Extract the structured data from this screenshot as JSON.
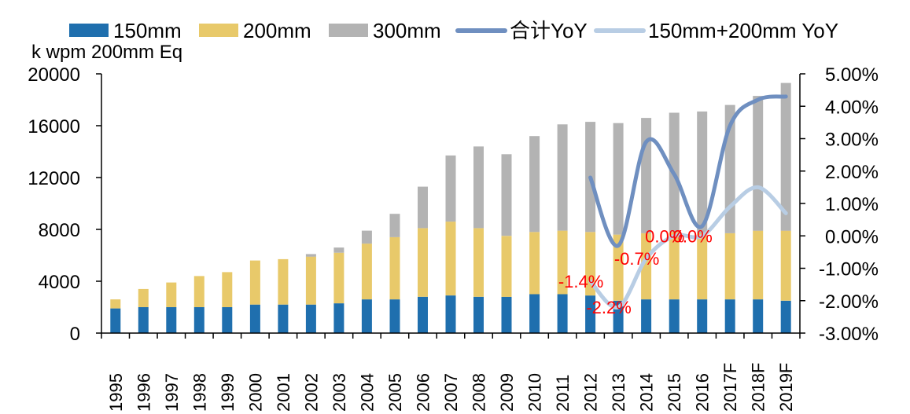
{
  "chart_data": {
    "type": "bar",
    "stacked": true,
    "y_unit_label": "k wpm 200mm Eq",
    "categories": [
      "1995",
      "1996",
      "1997",
      "1998",
      "1999",
      "2000",
      "2001",
      "2002",
      "2003",
      "2004",
      "2005",
      "2006",
      "2007",
      "2008",
      "2009",
      "2010",
      "2011",
      "2012",
      "2013",
      "2014",
      "2015",
      "2016",
      "2017F",
      "2018F",
      "2019F"
    ],
    "series": [
      {
        "name": "150mm",
        "kind": "bar",
        "color": "#1f6fae",
        "values": [
          1900,
          2000,
          2000,
          2000,
          2000,
          2200,
          2200,
          2200,
          2300,
          2600,
          2600,
          2800,
          2900,
          2800,
          2800,
          3000,
          3000,
          2900,
          2500,
          2600,
          2600,
          2600,
          2600,
          2600,
          2500
        ]
      },
      {
        "name": "200mm",
        "kind": "bar",
        "color": "#e8c96a",
        "values": [
          700,
          1400,
          1900,
          2400,
          2700,
          3400,
          3500,
          3700,
          3900,
          4300,
          4800,
          5300,
          5700,
          5300,
          4700,
          4800,
          4900,
          4900,
          5100,
          5100,
          5200,
          5100,
          5100,
          5300,
          5400
        ]
      },
      {
        "name": "300mm",
        "kind": "bar",
        "color": "#b3b3b3",
        "values": [
          0,
          0,
          0,
          0,
          0,
          0,
          0,
          200,
          400,
          1000,
          1800,
          3200,
          5100,
          6300,
          6300,
          7400,
          8200,
          8500,
          8600,
          8900,
          9200,
          9400,
          9900,
          10400,
          11400
        ]
      },
      {
        "name": "合计YoY",
        "kind": "line",
        "axis": "right",
        "color": "#6f8fc0",
        "x": [
          "2012",
          "2013",
          "2014",
          "2015",
          "2016",
          "2017F",
          "2018F",
          "2019F"
        ],
        "values": [
          1.8,
          -0.3,
          2.9,
          1.9,
          0.3,
          3.4,
          4.2,
          4.3
        ]
      },
      {
        "name": "150mm+200mm YoY",
        "kind": "line",
        "axis": "right",
        "color": "#b8cde4",
        "x": [
          "2012",
          "2013",
          "2014",
          "2015",
          "2016",
          "2017F",
          "2018F",
          "2019F"
        ],
        "values": [
          -1.4,
          -2.2,
          -0.7,
          0.0,
          0.0,
          0.9,
          1.5,
          0.7
        ]
      }
    ],
    "data_labels": [
      {
        "x": "2012",
        "text": "-1.4%"
      },
      {
        "x": "2013",
        "text": "-2.2%"
      },
      {
        "x": "2014",
        "text": "-0.7%"
      },
      {
        "x": "2015",
        "text": "0.0%"
      },
      {
        "x": "2016",
        "text": "0.0%"
      }
    ],
    "left_axis": {
      "ylim": [
        0,
        20000
      ],
      "ticks": [
        "0",
        "4000",
        "8000",
        "12000",
        "16000",
        "20000"
      ],
      "tick_values": [
        0,
        4000,
        8000,
        12000,
        16000,
        20000
      ]
    },
    "right_axis": {
      "ylim": [
        -3,
        5
      ],
      "ticks": [
        "-3.00%",
        "-2.00%",
        "-1.00%",
        "0.00%",
        "1.00%",
        "2.00%",
        "3.00%",
        "4.00%",
        "5.00%"
      ],
      "tick_values": [
        -3,
        -2,
        -1,
        0,
        1,
        2,
        3,
        4,
        5
      ]
    },
    "grid": false,
    "legend_position": "top"
  }
}
